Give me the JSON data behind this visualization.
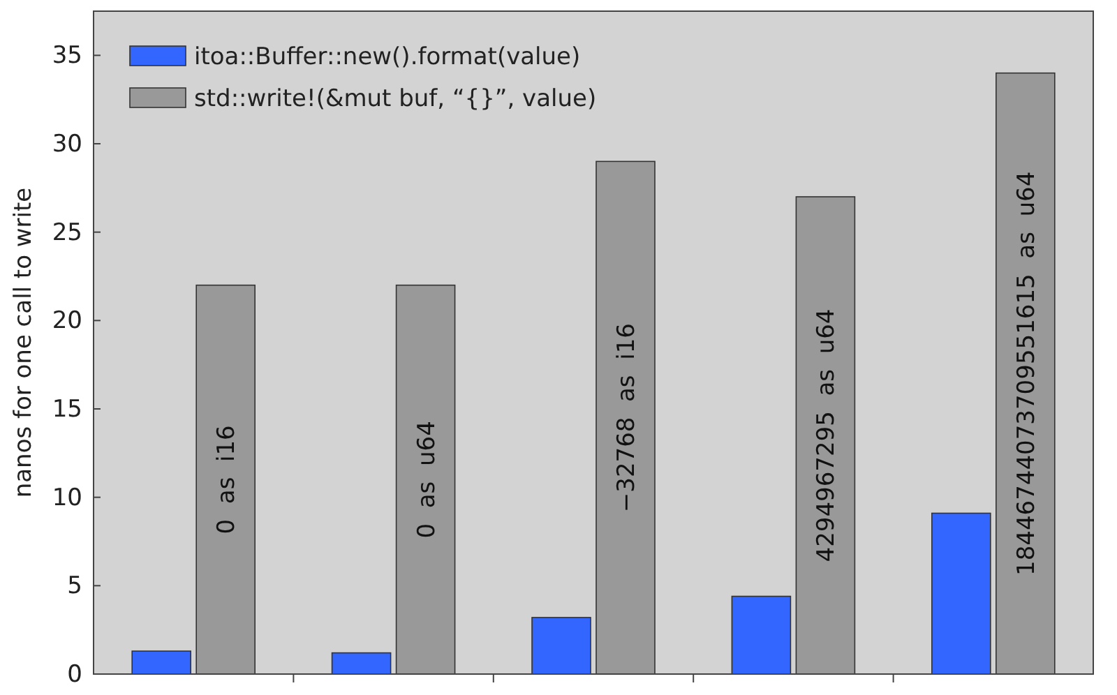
{
  "chart_data": {
    "type": "bar",
    "ylabel": "nanos for one call to write",
    "categories": [
      "0  as  i16",
      "0  as  u64",
      "−32768  as  i16",
      "4294967295  as  u64",
      "18446744073709551615  as  u64"
    ],
    "series": [
      {
        "name": "itoa::Buffer::new().format(value)",
        "color": "#3366ff",
        "values": [
          1.3,
          1.2,
          3.2,
          4.4,
          9.1
        ]
      },
      {
        "name": "std::write!(&mut buf, “{}”, value)",
        "color": "#999999",
        "values": [
          22,
          22,
          29,
          27,
          34
        ]
      }
    ],
    "ylim": [
      0,
      37.5
    ],
    "yticks": [
      0,
      5,
      10,
      15,
      20,
      25,
      30,
      35
    ],
    "legend": "top left",
    "grid": false
  }
}
